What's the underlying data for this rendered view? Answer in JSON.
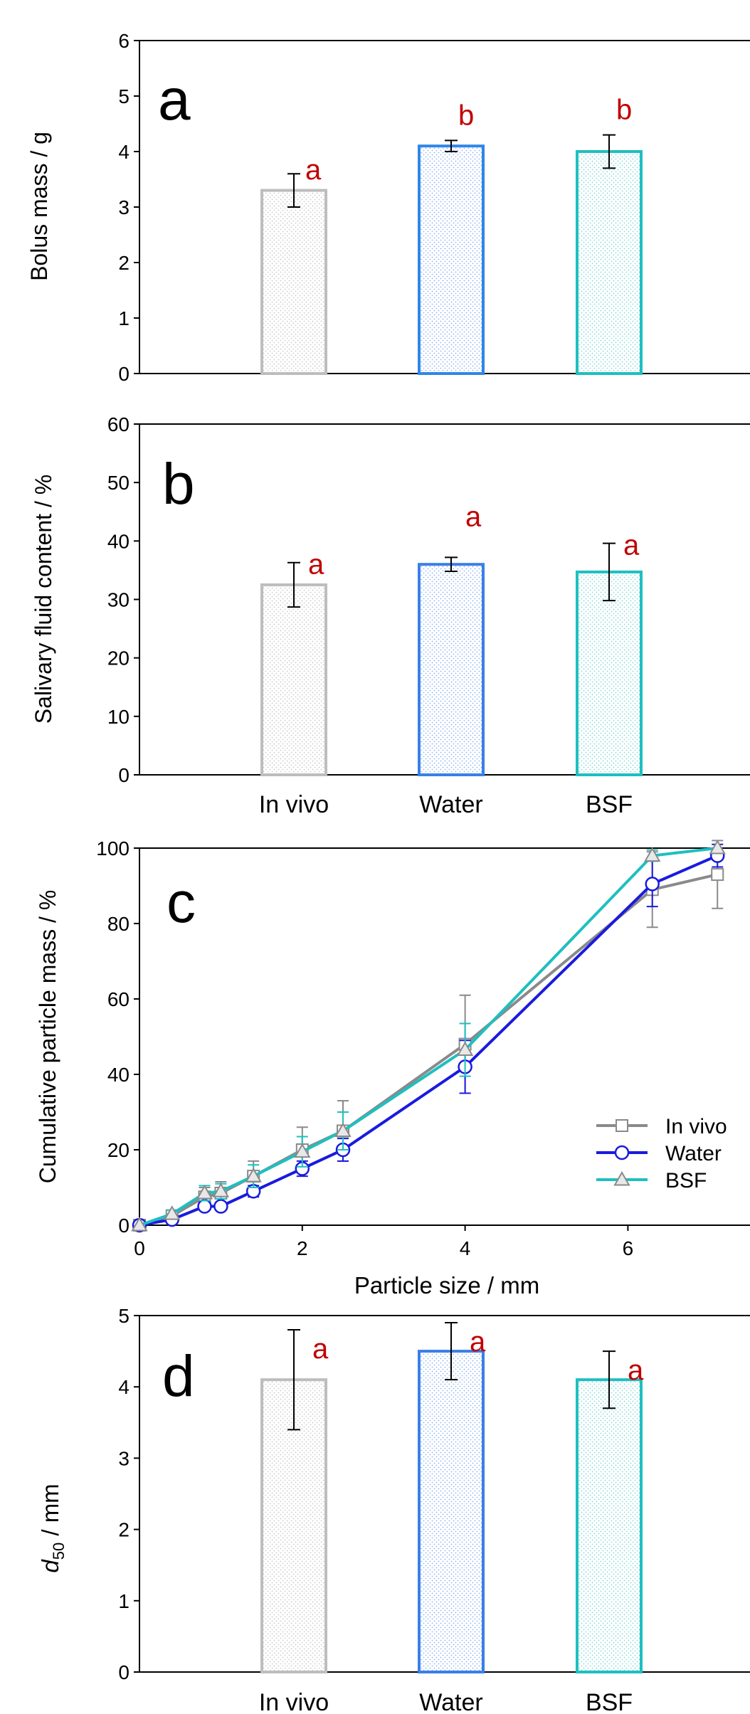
{
  "chart_data": [
    {
      "panel": "a",
      "type": "bar",
      "categories": [
        "In vivo",
        "Water",
        "BSF"
      ],
      "show_category_labels": false,
      "values": [
        3.3,
        4.1,
        4.0
      ],
      "errors": [
        0.3,
        0.1,
        0.3
      ],
      "letters": [
        "a",
        "b",
        "b"
      ],
      "ylabel": "Bolus mass / g",
      "ylim": [
        0,
        6
      ],
      "yticks": [
        0,
        1,
        2,
        3,
        4,
        5,
        6
      ],
      "colors": [
        "#bdbdbd",
        "#2f86e8",
        "#1fbfbf"
      ]
    },
    {
      "panel": "b",
      "type": "bar",
      "categories": [
        "In vivo",
        "Water",
        "BSF"
      ],
      "show_category_labels": true,
      "values": [
        32.5,
        36.0,
        34.7
      ],
      "errors": [
        3.8,
        1.2,
        4.9
      ],
      "letters": [
        "a",
        "a",
        "a"
      ],
      "ylabel": "Salivary fluid content / %",
      "ylim": [
        0,
        60
      ],
      "yticks": [
        0,
        10,
        20,
        30,
        40,
        50,
        60
      ],
      "colors": [
        "#bdbdbd",
        "#3a7fe8",
        "#1fbfbf"
      ]
    },
    {
      "panel": "c",
      "type": "line",
      "xlabel": "Particle size / mm",
      "ylabel": "Cumulative particle mass / %",
      "xlim": [
        0,
        7.5
      ],
      "ylim": [
        0,
        100
      ],
      "xticks": [
        0,
        2,
        4,
        6
      ],
      "yticks": [
        0,
        20,
        40,
        60,
        80,
        100
      ],
      "legend_position": "lower-right",
      "series": [
        {
          "name": "In vivo",
          "color": "#8a8a8a",
          "marker": "square",
          "points": [
            [
              0,
              0
            ],
            [
              0.4,
              2.5
            ],
            [
              0.8,
              7.5
            ],
            [
              1.0,
              8.5
            ],
            [
              1.4,
              13
            ],
            [
              2.0,
              20
            ],
            [
              2.5,
              25
            ],
            [
              4.0,
              48
            ],
            [
              6.3,
              89
            ],
            [
              7.1,
              93
            ]
          ],
          "errors": [
            0,
            1,
            2.5,
            3,
            4,
            6,
            8,
            13,
            10,
            9
          ]
        },
        {
          "name": "Water",
          "color": "#1a1adf",
          "marker": "circle",
          "points": [
            [
              0,
              0
            ],
            [
              0.4,
              1.5
            ],
            [
              0.8,
              5
            ],
            [
              1.0,
              5
            ],
            [
              1.4,
              9
            ],
            [
              2.0,
              15
            ],
            [
              2.5,
              20
            ],
            [
              4.0,
              42
            ],
            [
              6.3,
              90.5
            ],
            [
              7.1,
              98
            ]
          ],
          "errors": [
            0,
            0.5,
            1,
            1,
            1.5,
            2,
            3,
            7,
            6,
            3
          ]
        },
        {
          "name": "BSF",
          "color": "#1fbfbf",
          "marker": "triangle",
          "points": [
            [
              0,
              0
            ],
            [
              0.4,
              3
            ],
            [
              0.8,
              8.5
            ],
            [
              1.0,
              9
            ],
            [
              1.4,
              13
            ],
            [
              2.0,
              19.5
            ],
            [
              2.5,
              25
            ],
            [
              4.0,
              46.5
            ],
            [
              6.3,
              98
            ],
            [
              7.1,
              100
            ]
          ],
          "errors": [
            0,
            1,
            2,
            2,
            3,
            4,
            5,
            7,
            1.5,
            0
          ]
        }
      ]
    },
    {
      "panel": "d",
      "type": "bar",
      "categories": [
        "In vivo",
        "Water",
        "BSF"
      ],
      "show_category_labels": true,
      "values": [
        4.1,
        4.5,
        4.1
      ],
      "errors": [
        0.7,
        0.4,
        0.4
      ],
      "letters": [
        "a",
        "a",
        "a"
      ],
      "ylabel_italic": "d",
      "ylabel_sub": "50",
      "ylabel_rest": " / mm",
      "ylim": [
        0,
        5
      ],
      "yticks": [
        0,
        1,
        2,
        3,
        4,
        5
      ],
      "colors": [
        "#bdbdbd",
        "#3a7fe8",
        "#1fbfbf"
      ]
    }
  ],
  "letter_color": "#c00000"
}
